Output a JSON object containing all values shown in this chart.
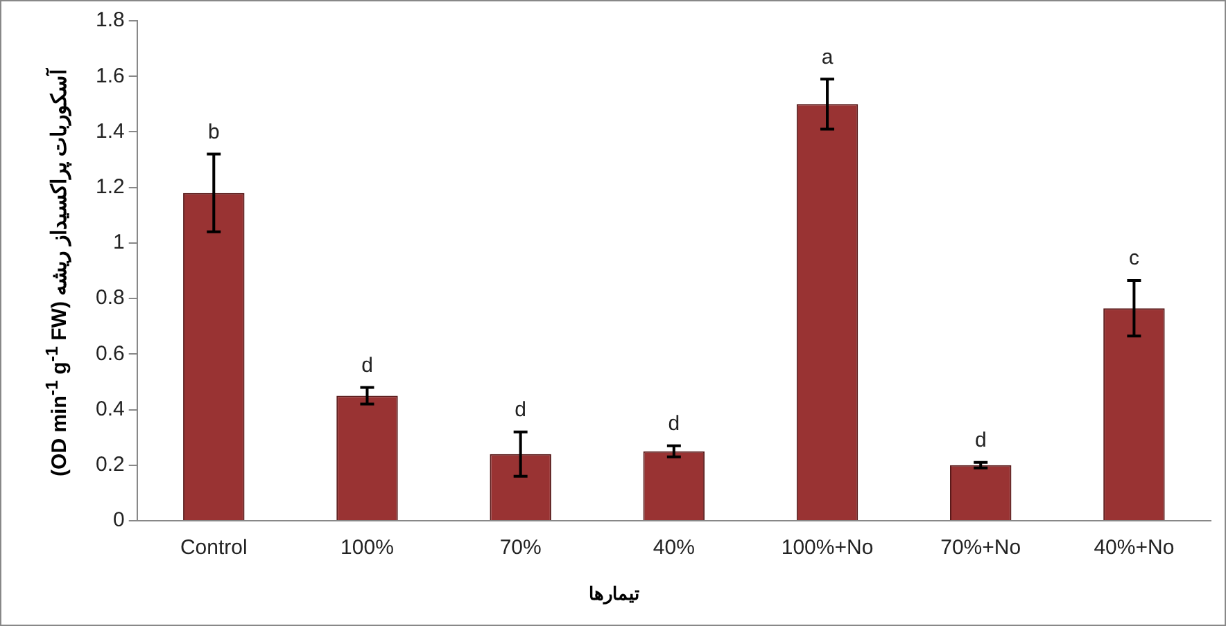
{
  "chart_data": {
    "type": "bar",
    "xlabel": "تیمارها",
    "ylabel": "(OD min$^{-1}$ g$^{-1}$ FW) آسکوربات پراکسیداز ریشه",
    "categories": [
      "Control",
      "100%",
      "70%",
      "40%",
      "100%+No",
      "70%+No",
      "40%+No"
    ],
    "values": [
      1.18,
      0.45,
      0.24,
      0.25,
      1.5,
      0.2,
      0.765
    ],
    "errors": [
      0.14,
      0.03,
      0.08,
      0.02,
      0.09,
      0.01,
      0.1
    ],
    "color": "#993333",
    "ylim": [
      0,
      1.8
    ],
    "yticks": [
      0,
      0.2,
      0.4,
      0.6,
      0.8,
      1,
      1.2,
      1.4,
      1.6,
      1.8
    ],
    "grid": false,
    "legend": false,
    "annotations": [
      {
        "text": "b",
        "x": "Control",
        "y": 1.32
      },
      {
        "text": "d",
        "x": "100%",
        "y": 0.48
      },
      {
        "text": "d",
        "x": "70%",
        "y": 0.32
      },
      {
        "text": "d",
        "x": "40%",
        "y": 0.27
      },
      {
        "text": "a",
        "x": "100%+No",
        "y": 1.59
      },
      {
        "text": "d",
        "x": "70%+No",
        "y": 0.21
      },
      {
        "text": "c",
        "x": "40%+No",
        "y": 0.865
      }
    ]
  }
}
